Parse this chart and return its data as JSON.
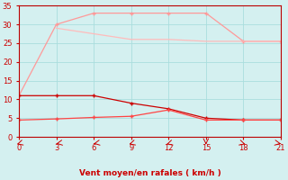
{
  "xlabel": "Vent moyen/en rafales ( km/h )",
  "x": [
    0,
    3,
    6,
    9,
    12,
    15,
    18,
    21
  ],
  "line1_x": [
    0,
    3,
    6,
    9,
    12,
    15,
    18,
    21
  ],
  "line1_y": [
    11,
    11,
    11,
    9,
    7.5,
    5,
    4.5,
    4.5
  ],
  "line2_x": [
    0,
    3,
    6,
    9,
    12,
    15,
    18,
    21
  ],
  "line2_y": [
    4.5,
    4.8,
    5.2,
    5.5,
    7.2,
    4.5,
    4.5,
    4.5
  ],
  "line3_x": [
    0,
    3,
    6,
    9,
    12,
    15,
    18,
    21
  ],
  "line3_y": [
    11,
    30,
    33,
    33,
    33,
    33,
    25.5,
    25.5
  ],
  "line4_x": [
    3,
    6,
    9,
    12,
    15,
    18,
    21
  ],
  "line4_y": [
    29,
    27.5,
    26,
    26,
    25.5,
    25.5,
    25.5
  ],
  "line1_color": "#cc0000",
  "line2_color": "#ff4444",
  "line3_color": "#ff9999",
  "line4_color": "#ffbbbb",
  "bg_color": "#d4f0f0",
  "grid_color": "#aadddd",
  "axis_color": "#bb0000",
  "tick_color": "#cc0000",
  "ylim": [
    0,
    35
  ],
  "xlim": [
    0,
    21
  ],
  "yticks": [
    0,
    5,
    10,
    15,
    20,
    25,
    30,
    35
  ],
  "xticks": [
    0,
    3,
    6,
    9,
    12,
    15,
    18,
    21
  ],
  "arrow_angles": [
    225,
    210,
    210,
    225,
    225,
    270,
    315,
    330
  ]
}
